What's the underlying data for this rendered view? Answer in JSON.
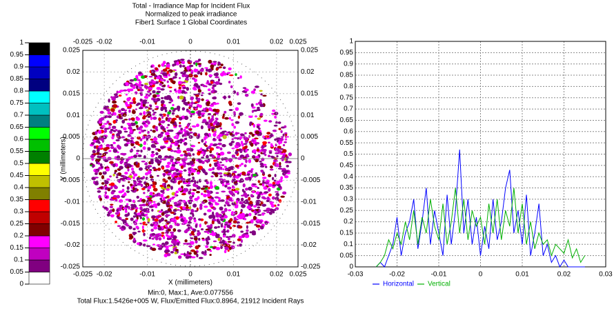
{
  "chart_data": [
    {
      "type": "heatmap",
      "title": [
        "Total - Irradiance Map for Incident Flux",
        "Normalized to peak irradiance",
        "Fiber1 Surface 1    Global Coordinates"
      ],
      "x_label": "X (millimeters)",
      "y_label": "Y (millimeters)",
      "xlim": [
        -0.025,
        0.025
      ],
      "ylim": [
        -0.025,
        0.025
      ],
      "xticks": [
        -0.025,
        -0.02,
        -0.01,
        0,
        0.01,
        0.02,
        0.025
      ],
      "yticks": [
        -0.025,
        -0.02,
        -0.015,
        -0.01,
        -0.005,
        0,
        0.005,
        0.01,
        0.015,
        0.02,
        0.025
      ],
      "grid": true,
      "stats": [
        "Min:0, Max:1, Ave:0.077556",
        "Total Flux:1.5426e+005 W, Flux/Emitted Flux:0.8964, 21912 Incident Rays"
      ],
      "colorbar": {
        "ticks": [
          0,
          0.05,
          0.1,
          0.15,
          0.2,
          0.25,
          0.3,
          0.35,
          0.4,
          0.45,
          0.5,
          0.55,
          0.6,
          0.65,
          0.7,
          0.75,
          0.8,
          0.85,
          0.9,
          0.95,
          1
        ],
        "colors": [
          "#ffffff",
          "#800080",
          "#c000c0",
          "#ff00ff",
          "#800000",
          "#c00000",
          "#ff0000",
          "#808000",
          "#c0c000",
          "#ffff00",
          "#008000",
          "#00c000",
          "#00ff00",
          "#008080",
          "#00c0c0",
          "#00ffff",
          "#000080",
          "#0000c0",
          "#0000ff",
          "#000000"
        ]
      }
    },
    {
      "type": "line",
      "xlim": [
        -0.03,
        0.03
      ],
      "ylim": [
        0,
        1
      ],
      "xticks": [
        -0.03,
        -0.02,
        -0.01,
        0,
        0.01,
        0.02,
        0.03
      ],
      "yticks": [
        0,
        0.05,
        0.1,
        0.15,
        0.2,
        0.25,
        0.3,
        0.35,
        0.4,
        0.45,
        0.5,
        0.55,
        0.6,
        0.65,
        0.7,
        0.75,
        0.8,
        0.85,
        0.9,
        0.95,
        1
      ],
      "grid": true,
      "legend": "bottom",
      "x": [
        -0.025,
        -0.024,
        -0.023,
        -0.022,
        -0.021,
        -0.02,
        -0.019,
        -0.018,
        -0.017,
        -0.016,
        -0.015,
        -0.014,
        -0.013,
        -0.012,
        -0.011,
        -0.01,
        -0.009,
        -0.008,
        -0.007,
        -0.006,
        -0.005,
        -0.004,
        -0.003,
        -0.002,
        -0.001,
        0,
        0.001,
        0.002,
        0.003,
        0.004,
        0.005,
        0.006,
        0.007,
        0.008,
        0.009,
        0.01,
        0.011,
        0.012,
        0.013,
        0.014,
        0.015,
        0.016,
        0.017,
        0.018,
        0.019,
        0.02,
        0.021,
        0.022,
        0.023,
        0.024,
        0.025
      ],
      "series": [
        {
          "name": "Horizontal",
          "color": "#0000ff",
          "values": [
            0,
            0.02,
            0,
            0.05,
            0.1,
            0.22,
            0.05,
            0.15,
            0.2,
            0.3,
            0.08,
            0.2,
            0.35,
            0.1,
            0.25,
            0.15,
            0.05,
            0.32,
            0.1,
            0.25,
            0.52,
            0.15,
            0.3,
            0.1,
            0.22,
            0.05,
            0.18,
            0.08,
            0.3,
            0.12,
            0.2,
            0.35,
            0.43,
            0.15,
            0.25,
            0.1,
            0.32,
            0.05,
            0.15,
            0.28,
            0.05,
            0.1,
            0.02,
            0.05,
            0,
            0.03,
            0,
            0,
            0,
            0,
            0
          ]
        },
        {
          "name": "Vertical",
          "color": "#00b000",
          "values": [
            0,
            0.02,
            0.05,
            0.12,
            0.08,
            0.15,
            0.1,
            0.2,
            0.12,
            0.25,
            0.1,
            0.22,
            0.15,
            0.3,
            0.18,
            0.12,
            0.28,
            0.1,
            0.2,
            0.35,
            0.15,
            0.3,
            0.12,
            0.25,
            0.18,
            0.22,
            0.1,
            0.28,
            0.15,
            0.3,
            0.12,
            0.25,
            0.18,
            0.35,
            0.15,
            0.28,
            0.1,
            0.2,
            0.08,
            0.15,
            0.1,
            0.12,
            0.05,
            0.1,
            0.08,
            0.06,
            0.12,
            0.04,
            0.08,
            0.02,
            0.05
          ]
        }
      ]
    }
  ]
}
